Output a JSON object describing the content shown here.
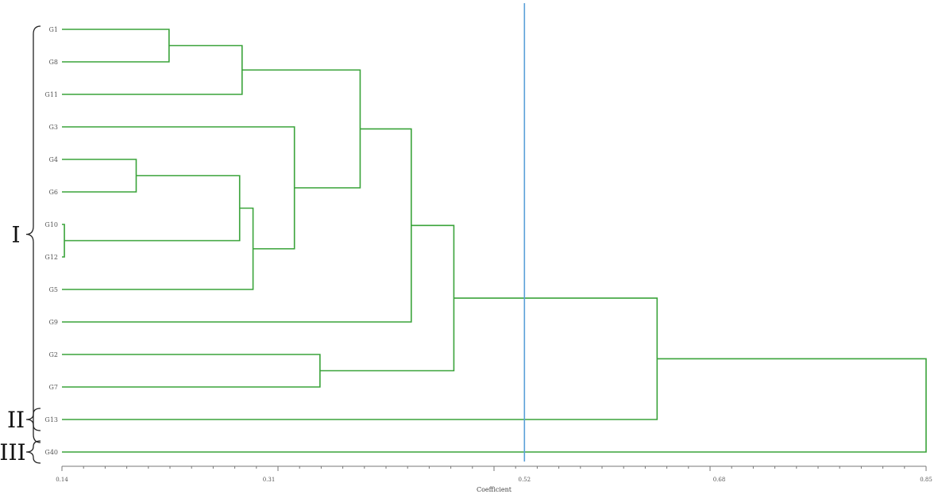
{
  "colors": {
    "branch": "#3aa33a",
    "cutoff_line": "#5aa0d8",
    "axis": "#777777",
    "text": "#555555",
    "brace": "#222222"
  },
  "chart_data": {
    "type": "dendrogram",
    "xlabel": "Coefficient",
    "xlim": [
      0.14,
      0.85
    ],
    "ticks": [
      {
        "value": 0.14,
        "label": "0.14"
      },
      {
        "value": 0.31,
        "label": "0.31"
      },
      {
        "value": 0.52,
        "label": "0.52"
      },
      {
        "value": 0.68,
        "label": "0.68"
      },
      {
        "value": 0.85,
        "label": "0.85"
      }
    ],
    "cutoff": 0.52,
    "leaves": [
      "G1",
      "G8",
      "G11",
      "G3",
      "G4",
      "G6",
      "G10",
      "G12",
      "G5",
      "G9",
      "G2",
      "G7",
      "G13",
      "G40"
    ],
    "merges": [
      {
        "id": "m1",
        "left": "G1",
        "right": "G8",
        "height": 0.228
      },
      {
        "id": "m2",
        "left": "m1",
        "right": "G11",
        "height": 0.288
      },
      {
        "id": "m3",
        "left": "G4",
        "right": "G6",
        "height": 0.201
      },
      {
        "id": "m4",
        "left": "G10",
        "right": "G12",
        "height": 0.142
      },
      {
        "id": "m5",
        "left": "m3",
        "right": "m4",
        "height": 0.286
      },
      {
        "id": "m6",
        "left": "m5",
        "right": "G5",
        "height": 0.297
      },
      {
        "id": "m7",
        "left": "G3",
        "right": "m6",
        "height": 0.331
      },
      {
        "id": "m8",
        "left": "m2",
        "right": "m7",
        "height": 0.385
      },
      {
        "id": "m9",
        "left": "m8",
        "right": "G9",
        "height": 0.427
      },
      {
        "id": "m10",
        "left": "G2",
        "right": "G7",
        "height": 0.352
      },
      {
        "id": "m11",
        "left": "m9",
        "right": "m10",
        "height": 0.462
      },
      {
        "id": "m12",
        "left": "m11",
        "right": "G13",
        "height": 0.629
      },
      {
        "id": "m13",
        "left": "m12",
        "right": "G40",
        "height": 0.85
      }
    ],
    "groups": [
      {
        "label": "I",
        "first": "G1",
        "last": "G7"
      },
      {
        "label": "II",
        "first": "G13",
        "last": "G13"
      },
      {
        "label": "III",
        "first": "G40",
        "last": "G40"
      }
    ]
  }
}
